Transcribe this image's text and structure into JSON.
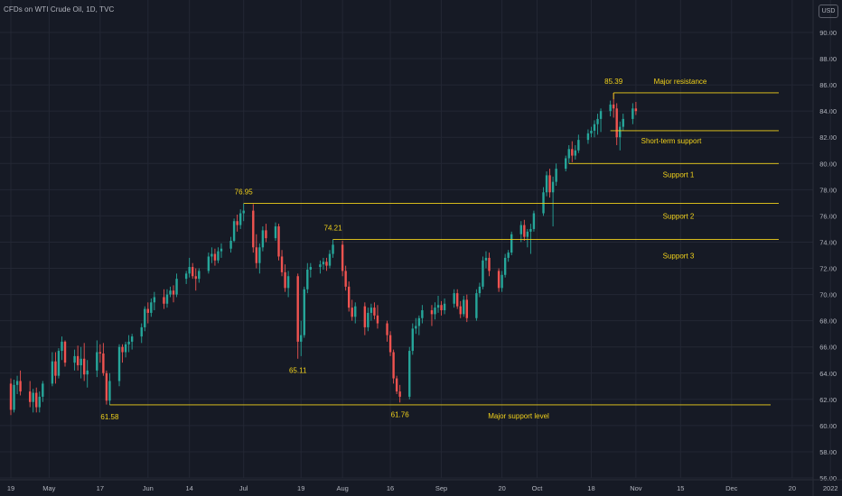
{
  "header": {
    "symbol_title": "CFDs on WTI Crude Oil, 1D, TVC",
    "currency": "USD"
  },
  "colors": {
    "background": "#161a25",
    "grid": "#232734",
    "up": "#26a69a",
    "down": "#ef5350",
    "annotation": "#f2d21b",
    "axis_text": "#b2b5be"
  },
  "chart_data": {
    "type": "candlestick",
    "title": "CFDs on WTI Crude Oil, 1D, TVC",
    "y_unit": "USD",
    "ylim": [
      55.5,
      91.0
    ],
    "y_ticks": [
      "56.00",
      "58.00",
      "60.00",
      "62.00",
      "64.00",
      "66.00",
      "68.00",
      "70.00",
      "72.00",
      "74.00",
      "76.00",
      "78.00",
      "80.00",
      "82.00",
      "84.00",
      "86.00",
      "88.00",
      "90.00"
    ],
    "x_ticks": [
      {
        "label": "19",
        "day": 0
      },
      {
        "label": "May",
        "day": 12
      },
      {
        "label": "17",
        "day": 28
      },
      {
        "label": "Jun",
        "day": 43
      },
      {
        "label": "14",
        "day": 56
      },
      {
        "label": "Jul",
        "day": 73
      },
      {
        "label": "19",
        "day": 91
      },
      {
        "label": "Aug",
        "day": 104
      },
      {
        "label": "16",
        "day": 119
      },
      {
        "label": "Sep",
        "day": 135
      },
      {
        "label": "20",
        "day": 154
      },
      {
        "label": "Oct",
        "day": 165
      },
      {
        "label": "18",
        "day": 182
      },
      {
        "label": "Nov",
        "day": 196
      },
      {
        "label": "15",
        "day": 210
      },
      {
        "label": "Dec",
        "day": 226
      },
      {
        "label": "20",
        "day": 245
      },
      {
        "label": "2022",
        "day": 257
      }
    ],
    "x_start_date": "2021-04-19",
    "ohlc": [
      {
        "d": 0,
        "o": 63.2,
        "h": 63.6,
        "l": 60.8,
        "c": 61.2
      },
      {
        "d": 1,
        "o": 61.2,
        "h": 63.5,
        "l": 61.0,
        "c": 63.1
      },
      {
        "d": 2,
        "o": 63.1,
        "h": 63.8,
        "l": 62.4,
        "c": 63.4
      },
      {
        "d": 3,
        "o": 63.4,
        "h": 64.2,
        "l": 62.3,
        "c": 62.6
      },
      {
        "d": 6,
        "o": 62.6,
        "h": 63.4,
        "l": 61.4,
        "c": 61.8
      },
      {
        "d": 7,
        "o": 61.8,
        "h": 62.8,
        "l": 61.0,
        "c": 62.5
      },
      {
        "d": 8,
        "o": 62.5,
        "h": 62.9,
        "l": 61.0,
        "c": 61.4
      },
      {
        "d": 9,
        "o": 61.4,
        "h": 62.6,
        "l": 61.0,
        "c": 62.2
      },
      {
        "d": 10,
        "o": 62.2,
        "h": 63.4,
        "l": 61.8,
        "c": 63.2
      },
      {
        "d": 13,
        "o": 63.2,
        "h": 65.6,
        "l": 63.0,
        "c": 64.9
      },
      {
        "d": 14,
        "o": 64.9,
        "h": 65.6,
        "l": 63.2,
        "c": 63.8
      },
      {
        "d": 15,
        "o": 63.8,
        "h": 65.9,
        "l": 63.6,
        "c": 65.7
      },
      {
        "d": 16,
        "o": 65.7,
        "h": 66.8,
        "l": 65.0,
        "c": 66.4
      },
      {
        "d": 17,
        "o": 66.4,
        "h": 66.5,
        "l": 64.5,
        "c": 64.8
      },
      {
        "d": 20,
        "o": 64.8,
        "h": 65.8,
        "l": 64.2,
        "c": 65.3
      },
      {
        "d": 21,
        "o": 65.3,
        "h": 66.1,
        "l": 64.2,
        "c": 64.6
      },
      {
        "d": 22,
        "o": 64.6,
        "h": 66.0,
        "l": 63.6,
        "c": 65.1
      },
      {
        "d": 23,
        "o": 65.1,
        "h": 66.3,
        "l": 63.4,
        "c": 63.9
      },
      {
        "d": 24,
        "o": 63.9,
        "h": 65.0,
        "l": 62.9,
        "c": 64.2
      },
      {
        "d": 27,
        "o": 64.2,
        "h": 66.5,
        "l": 63.7,
        "c": 65.6
      },
      {
        "d": 28,
        "o": 65.6,
        "h": 66.2,
        "l": 64.8,
        "c": 65.5
      },
      {
        "d": 29,
        "o": 65.5,
        "h": 66.3,
        "l": 63.8,
        "c": 64.0
      },
      {
        "d": 30,
        "o": 64.0,
        "h": 64.2,
        "l": 61.6,
        "c": 61.9
      },
      {
        "d": 31,
        "o": 61.9,
        "h": 64.0,
        "l": 61.58,
        "c": 63.4
      },
      {
        "d": 34,
        "o": 63.4,
        "h": 66.2,
        "l": 63.0,
        "c": 66.0
      },
      {
        "d": 35,
        "o": 66.0,
        "h": 66.2,
        "l": 64.8,
        "c": 65.6
      },
      {
        "d": 36,
        "o": 65.6,
        "h": 66.4,
        "l": 65.2,
        "c": 66.2
      },
      {
        "d": 37,
        "o": 66.2,
        "h": 66.9,
        "l": 65.6,
        "c": 66.4
      },
      {
        "d": 38,
        "o": 66.4,
        "h": 67.0,
        "l": 65.8,
        "c": 66.8
      },
      {
        "d": 41,
        "o": 66.8,
        "h": 67.8,
        "l": 66.3,
        "c": 67.5
      },
      {
        "d": 42,
        "o": 67.5,
        "h": 69.1,
        "l": 67.2,
        "c": 68.9
      },
      {
        "d": 43,
        "o": 68.9,
        "h": 69.4,
        "l": 67.8,
        "c": 68.6
      },
      {
        "d": 44,
        "o": 68.6,
        "h": 69.7,
        "l": 68.3,
        "c": 69.4
      },
      {
        "d": 45,
        "o": 69.4,
        "h": 70.2,
        "l": 68.8,
        "c": 69.8
      },
      {
        "d": 48,
        "o": 69.8,
        "h": 70.4,
        "l": 68.9,
        "c": 69.3
      },
      {
        "d": 49,
        "o": 69.3,
        "h": 70.4,
        "l": 69.0,
        "c": 70.0
      },
      {
        "d": 50,
        "o": 70.0,
        "h": 70.6,
        "l": 69.8,
        "c": 70.3
      },
      {
        "d": 51,
        "o": 70.3,
        "h": 70.7,
        "l": 69.4,
        "c": 70.0
      },
      {
        "d": 52,
        "o": 70.0,
        "h": 71.6,
        "l": 69.8,
        "c": 71.2
      },
      {
        "d": 55,
        "o": 71.2,
        "h": 71.8,
        "l": 70.8,
        "c": 71.6
      },
      {
        "d": 56,
        "o": 71.6,
        "h": 72.8,
        "l": 71.3,
        "c": 72.1
      },
      {
        "d": 57,
        "o": 72.1,
        "h": 72.4,
        "l": 71.2,
        "c": 71.4
      },
      {
        "d": 58,
        "o": 71.4,
        "h": 72.0,
        "l": 70.3,
        "c": 71.2
      },
      {
        "d": 59,
        "o": 71.2,
        "h": 72.0,
        "l": 70.9,
        "c": 71.8
      },
      {
        "d": 62,
        "o": 71.8,
        "h": 73.2,
        "l": 71.6,
        "c": 72.9
      },
      {
        "d": 63,
        "o": 72.9,
        "h": 73.6,
        "l": 72.4,
        "c": 73.1
      },
      {
        "d": 64,
        "o": 73.1,
        "h": 73.5,
        "l": 72.2,
        "c": 72.6
      },
      {
        "d": 65,
        "o": 72.6,
        "h": 73.6,
        "l": 72.4,
        "c": 73.3
      },
      {
        "d": 66,
        "o": 73.3,
        "h": 73.9,
        "l": 72.8,
        "c": 73.5
      },
      {
        "d": 69,
        "o": 73.5,
        "h": 74.4,
        "l": 73.2,
        "c": 74.1
      },
      {
        "d": 70,
        "o": 74.1,
        "h": 75.8,
        "l": 74.0,
        "c": 75.6
      },
      {
        "d": 71,
        "o": 75.6,
        "h": 76.1,
        "l": 74.8,
        "c": 75.3
      },
      {
        "d": 72,
        "o": 75.3,
        "h": 76.5,
        "l": 75.0,
        "c": 76.2
      },
      {
        "d": 73,
        "o": 76.2,
        "h": 76.95,
        "l": 75.6,
        "c": 76.4
      },
      {
        "d": 76,
        "o": 76.4,
        "h": 76.9,
        "l": 73.2,
        "c": 73.6
      },
      {
        "d": 77,
        "o": 73.6,
        "h": 74.6,
        "l": 72.0,
        "c": 72.4
      },
      {
        "d": 78,
        "o": 72.4,
        "h": 73.9,
        "l": 71.6,
        "c": 73.6
      },
      {
        "d": 79,
        "o": 73.6,
        "h": 75.2,
        "l": 73.3,
        "c": 74.9
      },
      {
        "d": 80,
        "o": 74.9,
        "h": 75.4,
        "l": 74.0,
        "c": 74.3
      },
      {
        "d": 83,
        "o": 74.3,
        "h": 75.5,
        "l": 74.1,
        "c": 75.2
      },
      {
        "d": 84,
        "o": 75.2,
        "h": 75.4,
        "l": 72.6,
        "c": 72.9
      },
      {
        "d": 85,
        "o": 72.9,
        "h": 73.4,
        "l": 71.4,
        "c": 71.7
      },
      {
        "d": 86,
        "o": 71.7,
        "h": 72.3,
        "l": 70.2,
        "c": 70.5
      },
      {
        "d": 87,
        "o": 70.5,
        "h": 71.8,
        "l": 69.8,
        "c": 71.4
      },
      {
        "d": 90,
        "o": 71.4,
        "h": 71.6,
        "l": 65.1,
        "c": 66.4
      },
      {
        "d": 91,
        "o": 66.4,
        "h": 68.0,
        "l": 65.3,
        "c": 66.9
      },
      {
        "d": 92,
        "o": 66.9,
        "h": 70.6,
        "l": 66.7,
        "c": 70.4
      },
      {
        "d": 93,
        "o": 70.4,
        "h": 72.4,
        "l": 70.1,
        "c": 71.9
      },
      {
        "d": 94,
        "o": 71.9,
        "h": 72.4,
        "l": 71.3,
        "c": 72.1
      },
      {
        "d": 97,
        "o": 72.1,
        "h": 72.6,
        "l": 71.6,
        "c": 72.3
      },
      {
        "d": 98,
        "o": 72.3,
        "h": 72.8,
        "l": 71.9,
        "c": 72.5
      },
      {
        "d": 99,
        "o": 72.5,
        "h": 72.8,
        "l": 71.8,
        "c": 72.2
      },
      {
        "d": 100,
        "o": 72.2,
        "h": 73.4,
        "l": 72.0,
        "c": 73.1
      },
      {
        "d": 101,
        "o": 73.1,
        "h": 74.21,
        "l": 72.8,
        "c": 73.8
      },
      {
        "d": 104,
        "o": 73.8,
        "h": 74.1,
        "l": 71.4,
        "c": 71.8
      },
      {
        "d": 105,
        "o": 71.8,
        "h": 72.2,
        "l": 70.3,
        "c": 70.6
      },
      {
        "d": 106,
        "o": 70.6,
        "h": 71.0,
        "l": 68.7,
        "c": 69.0
      },
      {
        "d": 107,
        "o": 69.0,
        "h": 69.6,
        "l": 68.0,
        "c": 68.3
      },
      {
        "d": 108,
        "o": 68.3,
        "h": 69.4,
        "l": 67.8,
        "c": 69.1
      },
      {
        "d": 111,
        "o": 69.1,
        "h": 69.4,
        "l": 66.9,
        "c": 67.5
      },
      {
        "d": 112,
        "o": 67.5,
        "h": 69.0,
        "l": 67.2,
        "c": 68.6
      },
      {
        "d": 113,
        "o": 68.6,
        "h": 69.3,
        "l": 68.0,
        "c": 69.0
      },
      {
        "d": 114,
        "o": 69.0,
        "h": 69.4,
        "l": 68.1,
        "c": 68.4
      },
      {
        "d": 115,
        "o": 68.4,
        "h": 69.2,
        "l": 67.4,
        "c": 67.8
      },
      {
        "d": 118,
        "o": 67.8,
        "h": 68.0,
        "l": 66.4,
        "c": 66.9
      },
      {
        "d": 119,
        "o": 66.9,
        "h": 67.2,
        "l": 65.3,
        "c": 65.6
      },
      {
        "d": 120,
        "o": 65.6,
        "h": 65.8,
        "l": 63.2,
        "c": 63.6
      },
      {
        "d": 121,
        "o": 63.6,
        "h": 63.8,
        "l": 62.4,
        "c": 62.6
      },
      {
        "d": 122,
        "o": 62.6,
        "h": 63.1,
        "l": 61.76,
        "c": 62.2
      },
      {
        "d": 125,
        "o": 62.2,
        "h": 66.0,
        "l": 62.0,
        "c": 65.7
      },
      {
        "d": 126,
        "o": 65.7,
        "h": 67.8,
        "l": 65.4,
        "c": 67.4
      },
      {
        "d": 127,
        "o": 67.4,
        "h": 68.2,
        "l": 67.0,
        "c": 67.6
      },
      {
        "d": 128,
        "o": 67.6,
        "h": 68.4,
        "l": 66.9,
        "c": 68.2
      },
      {
        "d": 129,
        "o": 68.2,
        "h": 69.2,
        "l": 67.8,
        "c": 68.8
      },
      {
        "d": 132,
        "o": 68.8,
        "h": 69.2,
        "l": 67.6,
        "c": 68.5
      },
      {
        "d": 133,
        "o": 68.5,
        "h": 69.4,
        "l": 68.1,
        "c": 69.0
      },
      {
        "d": 134,
        "o": 69.0,
        "h": 69.9,
        "l": 68.6,
        "c": 69.2
      },
      {
        "d": 135,
        "o": 69.2,
        "h": 69.5,
        "l": 68.4,
        "c": 68.8
      },
      {
        "d": 136,
        "o": 68.8,
        "h": 69.7,
        "l": 68.5,
        "c": 69.3
      },
      {
        "d": 139,
        "o": 69.3,
        "h": 70.4,
        "l": 69.0,
        "c": 70.1
      },
      {
        "d": 140,
        "o": 70.1,
        "h": 70.4,
        "l": 68.9,
        "c": 69.1
      },
      {
        "d": 141,
        "o": 69.1,
        "h": 69.5,
        "l": 68.2,
        "c": 68.5
      },
      {
        "d": 142,
        "o": 68.5,
        "h": 69.9,
        "l": 68.3,
        "c": 69.6
      },
      {
        "d": 143,
        "o": 69.6,
        "h": 70.0,
        "l": 67.9,
        "c": 68.2
      },
      {
        "d": 146,
        "o": 68.2,
        "h": 70.4,
        "l": 68.0,
        "c": 70.1
      },
      {
        "d": 147,
        "o": 70.1,
        "h": 70.9,
        "l": 69.8,
        "c": 70.6
      },
      {
        "d": 148,
        "o": 70.6,
        "h": 72.9,
        "l": 70.4,
        "c": 72.6
      },
      {
        "d": 149,
        "o": 72.6,
        "h": 73.3,
        "l": 72.0,
        "c": 72.8
      },
      {
        "d": 150,
        "o": 72.8,
        "h": 73.2,
        "l": 71.4,
        "c": 71.8
      },
      {
        "d": 153,
        "o": 71.8,
        "h": 72.0,
        "l": 70.2,
        "c": 70.5
      },
      {
        "d": 154,
        "o": 70.5,
        "h": 71.8,
        "l": 70.2,
        "c": 71.5
      },
      {
        "d": 155,
        "o": 71.5,
        "h": 73.1,
        "l": 71.3,
        "c": 72.8
      },
      {
        "d": 156,
        "o": 72.8,
        "h": 73.4,
        "l": 72.5,
        "c": 73.2
      },
      {
        "d": 157,
        "o": 73.2,
        "h": 74.8,
        "l": 73.0,
        "c": 74.6
      },
      {
        "d": 160,
        "o": 74.6,
        "h": 75.6,
        "l": 74.0,
        "c": 75.3
      },
      {
        "d": 161,
        "o": 75.3,
        "h": 75.7,
        "l": 74.1,
        "c": 74.4
      },
      {
        "d": 162,
        "o": 74.4,
        "h": 75.0,
        "l": 73.6,
        "c": 74.8
      },
      {
        "d": 163,
        "o": 74.8,
        "h": 75.4,
        "l": 73.1,
        "c": 75.0
      },
      {
        "d": 164,
        "o": 75.0,
        "h": 76.4,
        "l": 74.8,
        "c": 76.2
      },
      {
        "d": 167,
        "o": 76.2,
        "h": 78.2,
        "l": 76.0,
        "c": 77.8
      },
      {
        "d": 168,
        "o": 77.8,
        "h": 79.4,
        "l": 77.5,
        "c": 79.1
      },
      {
        "d": 169,
        "o": 79.1,
        "h": 79.6,
        "l": 77.4,
        "c": 77.8
      },
      {
        "d": 170,
        "o": 77.8,
        "h": 79.0,
        "l": 75.2,
        "c": 78.6
      },
      {
        "d": 171,
        "o": 78.6,
        "h": 80.0,
        "l": 78.3,
        "c": 79.6
      },
      {
        "d": 174,
        "o": 79.6,
        "h": 80.6,
        "l": 79.4,
        "c": 80.4
      },
      {
        "d": 175,
        "o": 80.4,
        "h": 81.4,
        "l": 80.0,
        "c": 81.1
      },
      {
        "d": 176,
        "o": 81.1,
        "h": 81.7,
        "l": 80.1,
        "c": 80.6
      },
      {
        "d": 177,
        "o": 80.6,
        "h": 81.4,
        "l": 80.3,
        "c": 81.0
      },
      {
        "d": 178,
        "o": 81.0,
        "h": 82.2,
        "l": 80.8,
        "c": 81.8
      },
      {
        "d": 181,
        "o": 81.8,
        "h": 82.6,
        "l": 81.5,
        "c": 82.3
      },
      {
        "d": 182,
        "o": 82.3,
        "h": 82.8,
        "l": 82.0,
        "c": 82.5
      },
      {
        "d": 183,
        "o": 82.5,
        "h": 83.3,
        "l": 82.0,
        "c": 83.0
      },
      {
        "d": 184,
        "o": 83.0,
        "h": 83.8,
        "l": 82.2,
        "c": 83.4
      },
      {
        "d": 185,
        "o": 83.4,
        "h": 84.2,
        "l": 82.4,
        "c": 84.0
      },
      {
        "d": 188,
        "o": 84.0,
        "h": 84.8,
        "l": 83.6,
        "c": 84.5
      },
      {
        "d": 189,
        "o": 84.5,
        "h": 85.39,
        "l": 83.5,
        "c": 84.2
      },
      {
        "d": 190,
        "o": 84.2,
        "h": 84.6,
        "l": 81.4,
        "c": 82.0
      },
      {
        "d": 191,
        "o": 82.0,
        "h": 83.2,
        "l": 81.0,
        "c": 82.8
      },
      {
        "d": 192,
        "o": 82.8,
        "h": 83.8,
        "l": 82.5,
        "c": 83.4
      },
      {
        "d": 195,
        "o": 83.4,
        "h": 84.6,
        "l": 83.0,
        "c": 84.2
      },
      {
        "d": 196,
        "o": 84.2,
        "h": 84.7,
        "l": 83.7,
        "c": 84.0
      }
    ],
    "horizontal_levels": [
      {
        "name": "major-resistance",
        "price": 85.39,
        "from_day": 189,
        "label": "Major resistance"
      },
      {
        "name": "short-term-support",
        "price": 82.5,
        "from_day": 188,
        "label": "Short-term support"
      },
      {
        "name": "support-1",
        "price": 80.0,
        "from_day": 175,
        "label": "Support 1"
      },
      {
        "name": "support-2",
        "price": 76.95,
        "from_day": 73,
        "label": "Support 2"
      },
      {
        "name": "support-3",
        "price": 74.21,
        "from_day": 101,
        "label": "Support 3"
      },
      {
        "name": "major-support",
        "price": 61.58,
        "from_day": 31,
        "label": "Major support level"
      }
    ],
    "price_labels": [
      {
        "text": "76.95",
        "day": 73,
        "price": 76.95,
        "position": "above"
      },
      {
        "text": "74.21",
        "day": 101,
        "price": 74.21,
        "position": "above"
      },
      {
        "text": "85.39",
        "day": 189,
        "price": 85.39,
        "position": "above"
      },
      {
        "text": "65.11",
        "day": 90,
        "price": 65.11,
        "position": "below"
      },
      {
        "text": "61.58",
        "day": 31,
        "price": 61.58,
        "position": "below"
      },
      {
        "text": "61.76",
        "day": 122,
        "price": 61.76,
        "position": "below"
      }
    ]
  }
}
